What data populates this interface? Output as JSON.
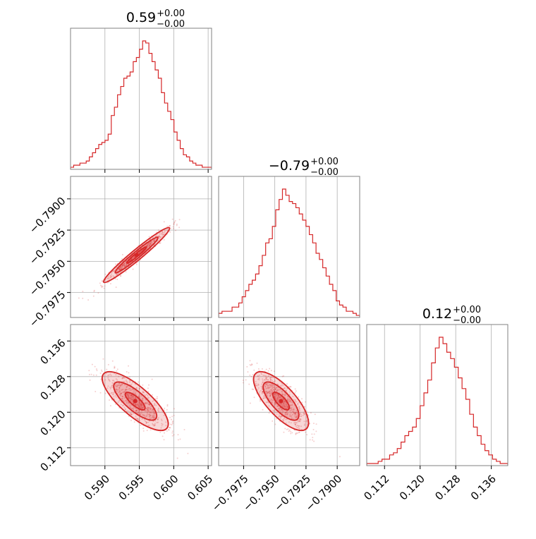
{
  "chart_data": {
    "type": "corner",
    "color": "#d62728",
    "parameters": [
      {
        "title_value": "0.59",
        "err_plus": "+0.00",
        "err_minus": "−0.00",
        "range": [
          0.585,
          0.6055
        ],
        "ticks": [
          {
            "value": 0.59,
            "label": "0.590"
          },
          {
            "value": 0.595,
            "label": "0.595"
          },
          {
            "value": 0.6,
            "label": "0.600"
          },
          {
            "value": 0.605,
            "label": "0.605"
          }
        ],
        "hist": [
          1,
          2,
          2,
          3,
          3,
          4,
          6,
          8,
          10,
          12,
          13,
          14,
          17,
          26,
          30,
          36,
          40,
          44,
          45,
          47,
          52,
          54,
          58,
          62,
          61,
          56,
          52,
          48,
          44,
          37,
          32,
          28,
          24,
          18,
          14,
          10,
          7,
          6,
          4,
          3,
          2,
          2,
          1,
          1,
          1
        ]
      },
      {
        "title_value": "−0.79",
        "err_plus": "+0.00",
        "err_minus": "−0.00",
        "range": [
          -0.7995,
          -0.7882
        ],
        "ticks": [
          {
            "value": -0.7975,
            "label": "−0.7975"
          },
          {
            "value": -0.795,
            "label": "−0.7950"
          },
          {
            "value": -0.7925,
            "label": "−0.7925"
          },
          {
            "value": -0.79,
            "label": "−0.7900"
          }
        ],
        "hist": [
          2,
          3,
          3,
          3,
          5,
          5,
          7,
          10,
          13,
          16,
          18,
          21,
          25,
          30,
          36,
          38,
          44,
          52,
          57,
          62,
          59,
          56,
          55,
          53,
          50,
          47,
          44,
          40,
          36,
          31,
          28,
          24,
          20,
          16,
          13,
          8,
          6,
          5,
          3,
          3,
          2,
          1
        ]
      },
      {
        "title_value": "0.12",
        "err_plus": "+0.00",
        "err_minus": "−0.00",
        "range": [
          0.108,
          0.1397
        ],
        "ticks": [
          {
            "value": 0.112,
            "label": "0.112"
          },
          {
            "value": 0.12,
            "label": "0.120"
          },
          {
            "value": 0.128,
            "label": "0.128"
          },
          {
            "value": 0.136,
            "label": "0.136"
          }
        ],
        "hist": [
          1,
          1,
          1,
          2,
          3,
          3,
          5,
          6,
          8,
          11,
          14,
          16,
          18,
          22,
          28,
          34,
          40,
          48,
          55,
          60,
          57,
          53,
          50,
          46,
          41,
          36,
          31,
          24,
          18,
          14,
          10,
          7,
          5,
          3,
          2,
          1,
          1
        ]
      }
    ],
    "pairs": [
      {
        "row": 1,
        "col": 0,
        "center": [
          0.5946,
          -0.7945
        ],
        "sd": [
          0.0024,
          0.0011
        ],
        "corr": 0.97
      },
      {
        "row": 2,
        "col": 0,
        "center": [
          0.5944,
          0.1225
        ],
        "sd": [
          0.0024,
          0.0033
        ],
        "corr": -0.78
      },
      {
        "row": 2,
        "col": 1,
        "center": [
          -0.7945,
          0.1225
        ],
        "sd": [
          0.0011,
          0.0033
        ],
        "corr": -0.74
      }
    ],
    "grid": true
  }
}
